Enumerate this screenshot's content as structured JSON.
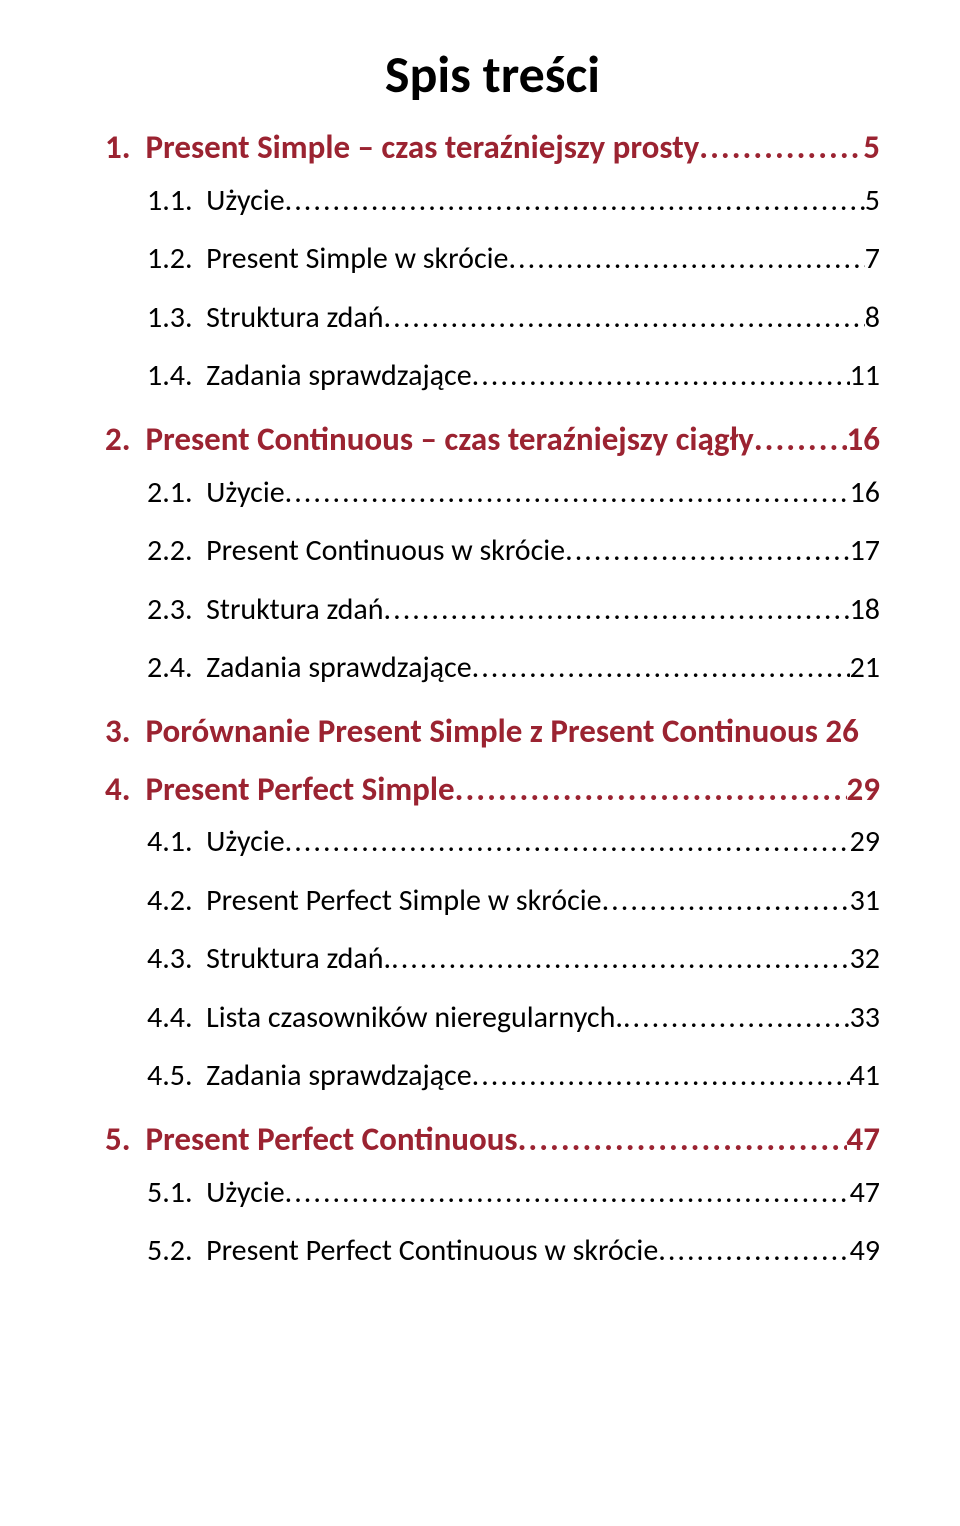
{
  "title": "Spis treści",
  "colors": {
    "heading": "#9b2331",
    "body": "#000000",
    "background": "#ffffff"
  },
  "toc": [
    {
      "level": 1,
      "num": "1.",
      "text": "Present Simple – czas teraźniejszy prosty",
      "page": "5",
      "leader": true
    },
    {
      "level": 2,
      "num": "1.1.",
      "text": "Użycie",
      "page": "5",
      "leader": true
    },
    {
      "level": 2,
      "num": "1.2.",
      "text": "Present Simple w skrócie",
      "page": "7",
      "leader": true
    },
    {
      "level": 2,
      "num": "1.3.",
      "text": "Struktura zdań",
      "page": "8",
      "leader": true
    },
    {
      "level": 2,
      "num": "1.4.",
      "text": "Zadania sprawdzające",
      "page": "11",
      "leader": true
    },
    {
      "level": 1,
      "num": "2.",
      "text": "Present Continuous – czas teraźniejszy ciągły",
      "page": "16",
      "leader": true
    },
    {
      "level": 2,
      "num": "2.1.",
      "text": "Użycie",
      "page": "16",
      "leader": true
    },
    {
      "level": 2,
      "num": "2.2.",
      "text": "Present Continuous w skrócie",
      "page": "17",
      "leader": true
    },
    {
      "level": 2,
      "num": "2.3.",
      "text": "Struktura zdań",
      "page": "18",
      "leader": true
    },
    {
      "level": 2,
      "num": "2.4.",
      "text": "Zadania sprawdzające",
      "page": "21",
      "leader": true
    },
    {
      "level": 1,
      "num": "3.",
      "text": "Porównanie Present Simple z Present Continuous",
      "page": "26",
      "leader": false
    },
    {
      "level": 1,
      "num": "4.",
      "text": "Present Perfect Simple",
      "page": "29",
      "leader": true
    },
    {
      "level": 2,
      "num": "4.1.",
      "text": "Użycie",
      "page": "29",
      "leader": true
    },
    {
      "level": 2,
      "num": "4.2.",
      "text": "Present Perfect Simple w skrócie",
      "page": "31",
      "leader": true
    },
    {
      "level": 2,
      "num": "4.3.",
      "text": "Struktura zdań.",
      "page": "32",
      "leader": true
    },
    {
      "level": 2,
      "num": "4.4.",
      "text": "Lista czasowników nieregularnych.",
      "page": "33",
      "leader": true
    },
    {
      "level": 2,
      "num": "4.5.",
      "text": "Zadania sprawdzające",
      "page": "41",
      "leader": true
    },
    {
      "level": 1,
      "num": "5.",
      "text": "Present Perfect Continuous",
      "page": "47",
      "leader": true
    },
    {
      "level": 2,
      "num": "5.1.",
      "text": "Użycie",
      "page": "47",
      "leader": true
    },
    {
      "level": 2,
      "num": "5.2.",
      "text": "Present Perfect Continuous w skrócie",
      "page": "49",
      "leader": true
    }
  ],
  "leader_char": "."
}
